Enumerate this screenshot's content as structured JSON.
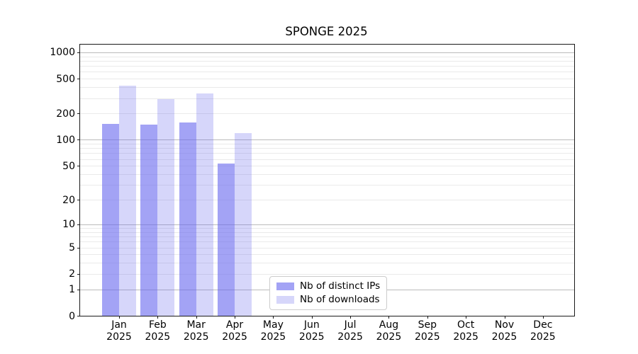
{
  "title": "SPONGE 2025",
  "chart_data": {
    "type": "bar",
    "title": "SPONGE 2025",
    "xlabel": "",
    "ylabel": "",
    "scale": "log1p (y position proportional to log10(value+1), symlog-like with 0 at axis)",
    "categories": [
      "Jan 2025",
      "Feb 2025",
      "Mar 2025",
      "Apr 2025",
      "May 2025",
      "Jun 2025",
      "Jul 2025",
      "Aug 2025",
      "Sep 2025",
      "Oct 2025",
      "Nov 2025",
      "Dec 2025"
    ],
    "series": [
      {
        "name": "Nb of distinct IPs",
        "color": "rgba(102,102,238,0.6)",
        "values": [
          153,
          150,
          158,
          53,
          0,
          0,
          0,
          0,
          0,
          0,
          0,
          0
        ]
      },
      {
        "name": "Nb of downloads",
        "color": "rgba(102,102,238,0.27)",
        "values": [
          420,
          290,
          340,
          120,
          0,
          0,
          0,
          0,
          0,
          0,
          0,
          0
        ]
      }
    ],
    "y_ticks": [
      0,
      1,
      2,
      5,
      10,
      20,
      50,
      100,
      200,
      500,
      1000
    ],
    "ylim": [
      0,
      1225
    ],
    "grid": "horizontal, major (decades) darker + minor lighter, visible through translucent bars",
    "legend_position": "lower center"
  },
  "colors": {
    "bar_base": "#6666ee",
    "major_grid": "#bbbbbb",
    "minor_grid": "#eaeaea",
    "spine": "#1a1a1a",
    "legend_border": "#cccccc"
  }
}
